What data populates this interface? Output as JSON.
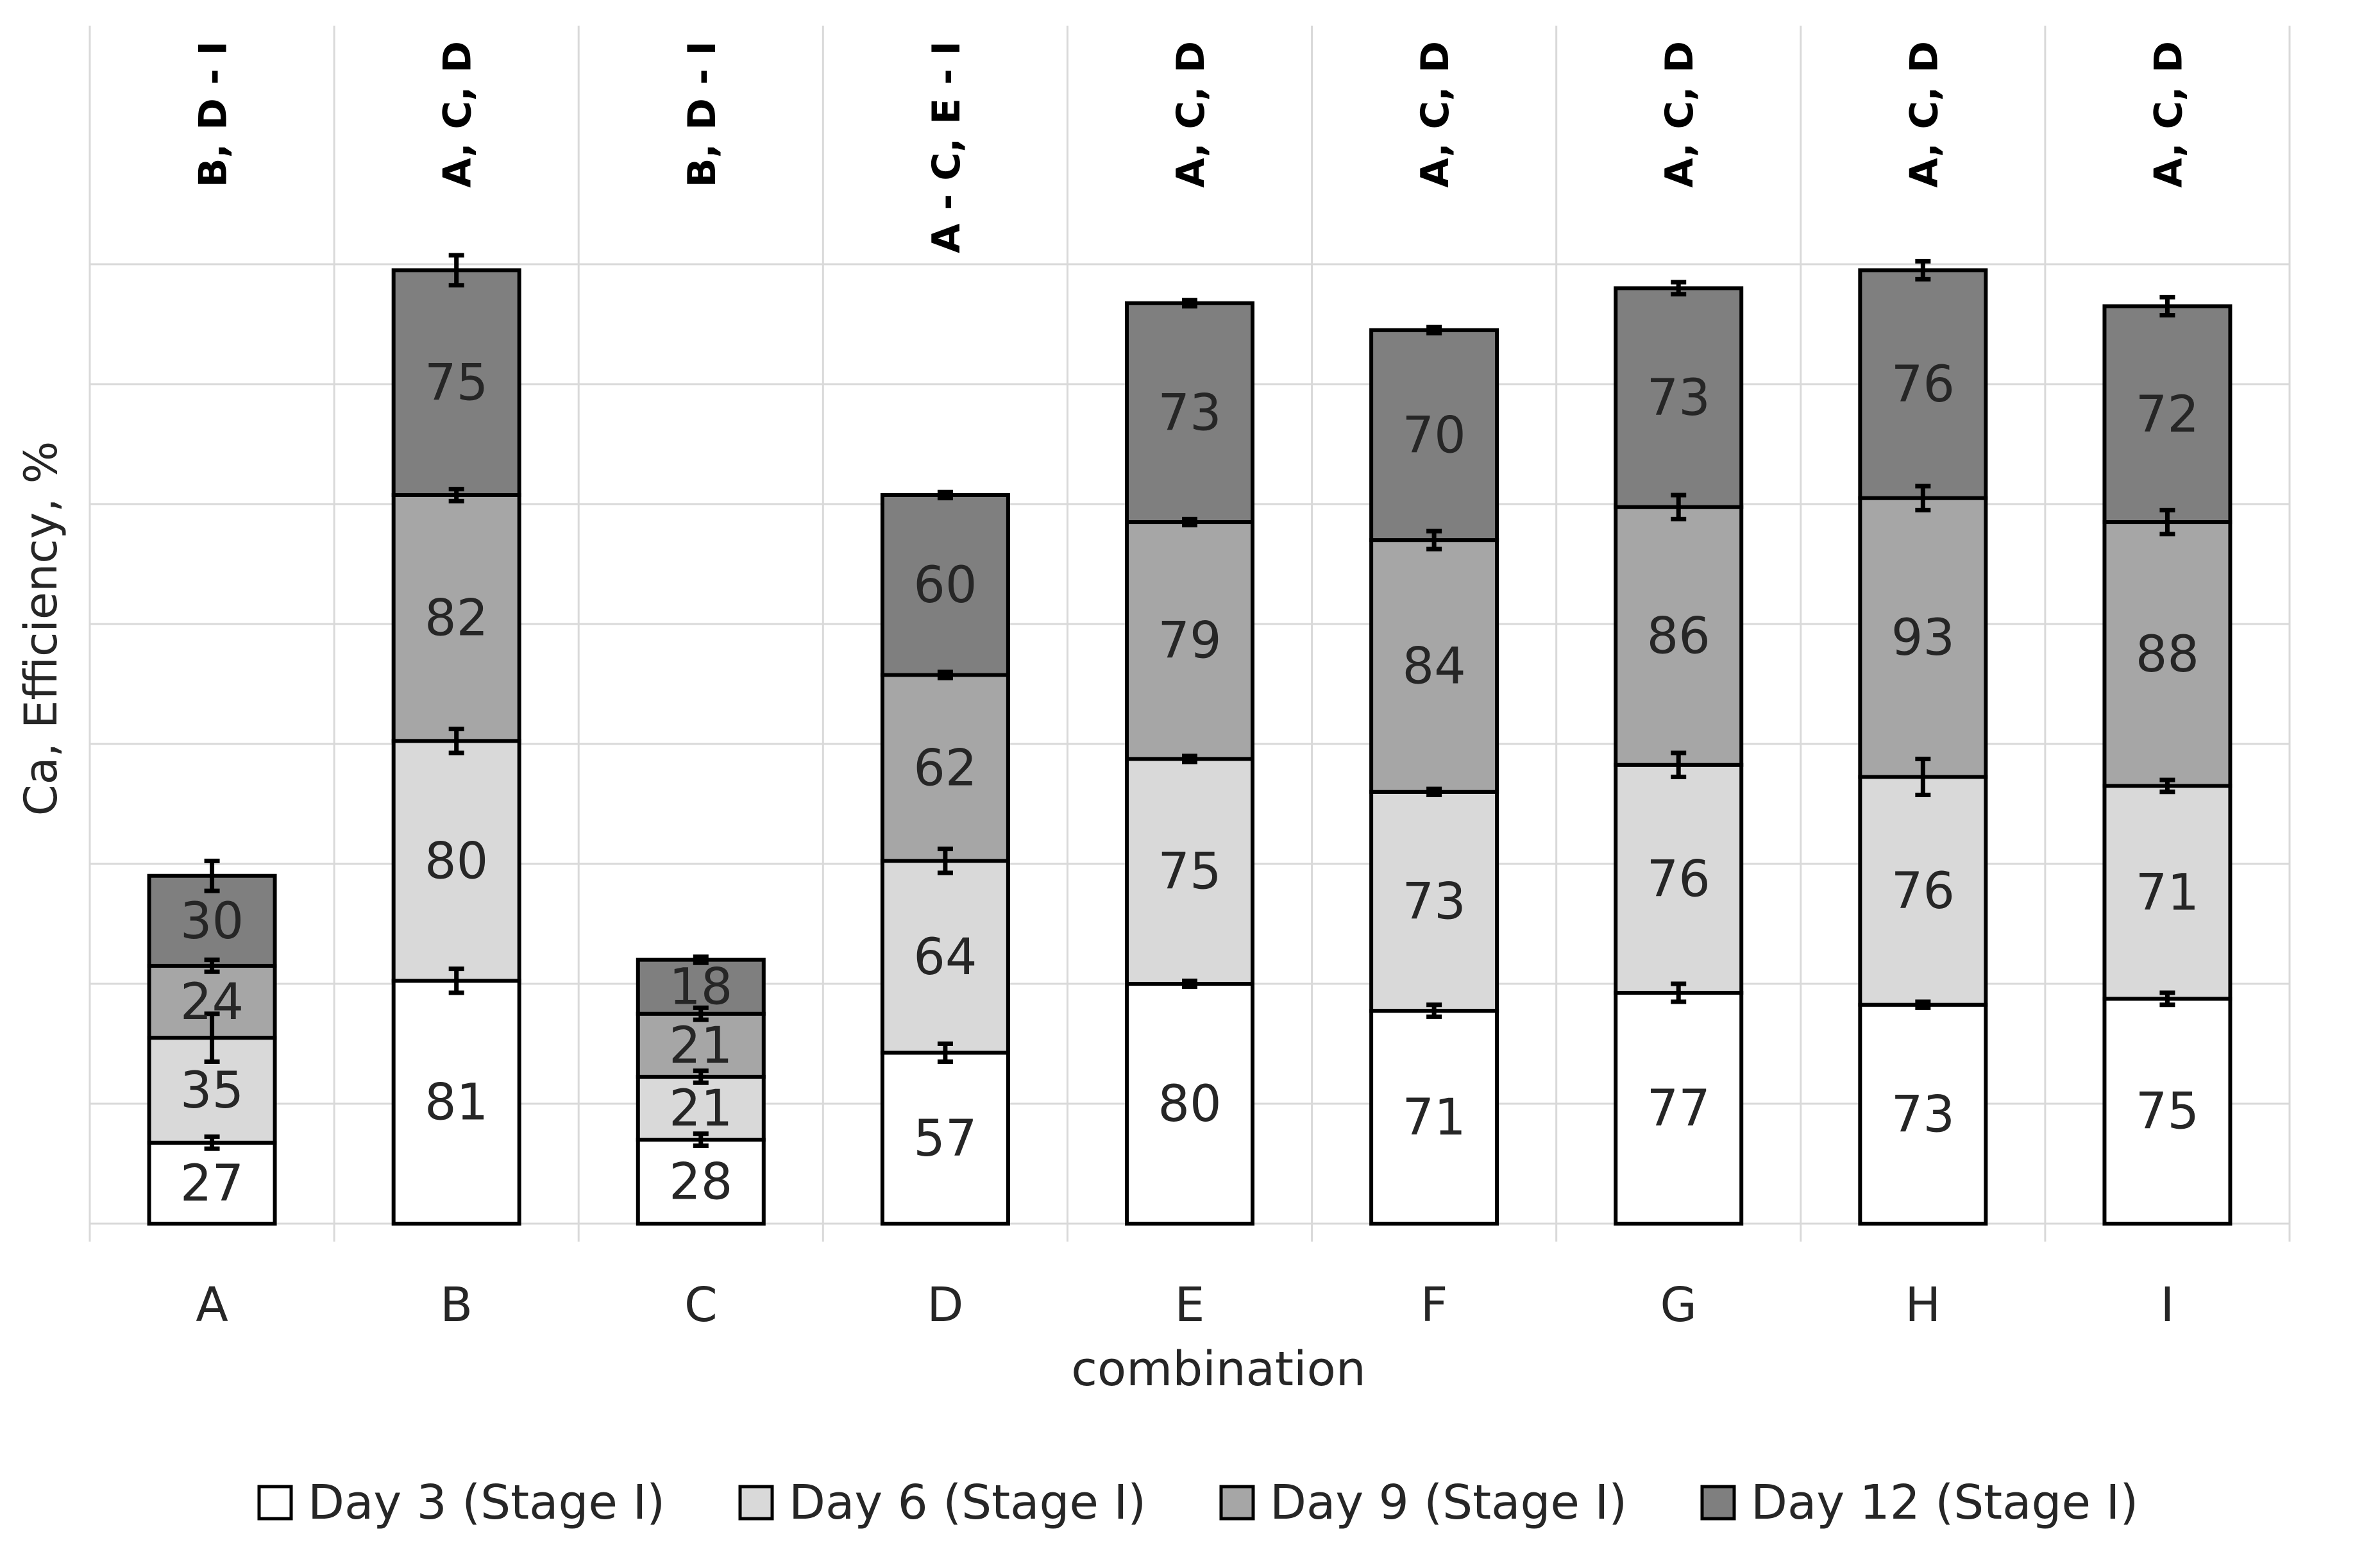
{
  "chart_data": {
    "type": "bar",
    "stacked": true,
    "title": "",
    "xlabel": "combination",
    "ylabel": "Ca, Efficiency, %",
    "categories": [
      "A",
      "B",
      "C",
      "D",
      "E",
      "F",
      "G",
      "H",
      "I"
    ],
    "series": [
      {
        "name": "Day 3 (Stage I)",
        "color": "#ffffff",
        "values": [
          27,
          81,
          28,
          57,
          80,
          71,
          77,
          73,
          75
        ]
      },
      {
        "name": "Day 6 (Stage I)",
        "color": "#d9d9d9",
        "values": [
          35,
          80,
          21,
          64,
          75,
          73,
          76,
          76,
          71
        ]
      },
      {
        "name": "Day 9 (Stage I)",
        "color": "#a6a6a6",
        "values": [
          24,
          82,
          21,
          62,
          79,
          84,
          86,
          93,
          88
        ]
      },
      {
        "name": "Day 12 (Stage I)",
        "color": "#7f7f7f",
        "values": [
          30,
          75,
          18,
          60,
          73,
          70,
          73,
          76,
          72
        ]
      }
    ],
    "significance_labels": [
      "B, D - I",
      "A, C, D",
      "B, D - I",
      "A - C, E - I",
      "A, C, D",
      "A, C, D",
      "A, C, D",
      "A, C, D",
      "A, C, D"
    ],
    "error_bars": [
      [
        2,
        4,
        2,
        3,
        1,
        2,
        3,
        1,
        2
      ],
      [
        8,
        4,
        2,
        4,
        1,
        1,
        4,
        6,
        2
      ],
      [
        2,
        2,
        2,
        1,
        1,
        3,
        4,
        4,
        4
      ],
      [
        5,
        5,
        1,
        1,
        1,
        1,
        2,
        3,
        3
      ]
    ],
    "ylim": [
      0,
      320
    ],
    "gridline_step": 40,
    "grid": true,
    "legend_position": "bottom"
  }
}
